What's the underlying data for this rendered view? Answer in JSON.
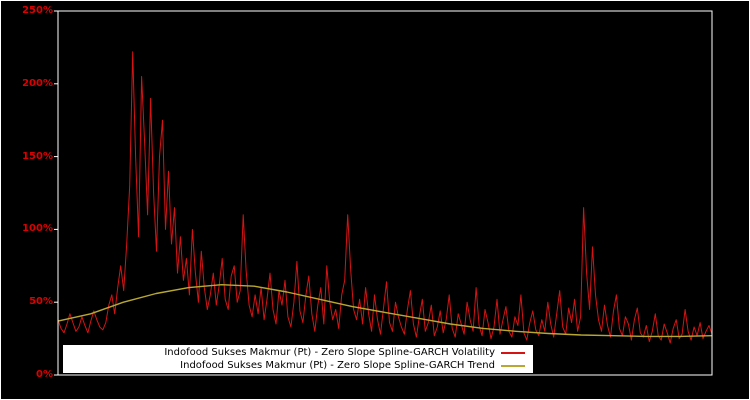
{
  "chart_data": {
    "type": "line",
    "title": "",
    "xlabel": "",
    "ylabel": "",
    "ylim": [
      0,
      250
    ],
    "y_ticks": [
      "0%",
      "50%",
      "100%",
      "150%",
      "200%",
      "250%"
    ],
    "y_tick_values": [
      0,
      50,
      100,
      150,
      200,
      250
    ],
    "tick_label_color": "#dd0000",
    "frame_color": "#ffffff",
    "background": "#000000",
    "legend_position": "bottom-center",
    "grid": false,
    "series": [
      {
        "name": "Indofood Sukses Makmur (Pt) - Zero Slope Spline-GARCH Volatility",
        "color": "#d41414",
        "unit": "%",
        "values": [
          38,
          32,
          29,
          35,
          42,
          36,
          30,
          33,
          40,
          34,
          29,
          37,
          44,
          38,
          33,
          31,
          36,
          48,
          55,
          42,
          60,
          75,
          58,
          90,
          130,
          222,
          150,
          95,
          205,
          160,
          110,
          190,
          125,
          85,
          150,
          175,
          100,
          140,
          90,
          115,
          70,
          95,
          65,
          80,
          55,
          100,
          70,
          50,
          85,
          60,
          45,
          55,
          70,
          48,
          62,
          80,
          52,
          45,
          68,
          75,
          50,
          58,
          110,
          72,
          48,
          40,
          55,
          42,
          60,
          38,
          52,
          70,
          45,
          35,
          58,
          48,
          65,
          40,
          33,
          50,
          78,
          44,
          36,
          55,
          68,
          42,
          30,
          48,
          60,
          35,
          75,
          50,
          38,
          45,
          32,
          55,
          65,
          110,
          72,
          45,
          38,
          52,
          35,
          60,
          42,
          30,
          55,
          38,
          28,
          46,
          64,
          36,
          30,
          50,
          40,
          33,
          28,
          45,
          58,
          35,
          26,
          40,
          52,
          30,
          36,
          48,
          27,
          33,
          44,
          29,
          38,
          55,
          32,
          26,
          42,
          35,
          28,
          50,
          38,
          30,
          60,
          34,
          27,
          45,
          36,
          25,
          33,
          52,
          28,
          38,
          47,
          30,
          26,
          40,
          34,
          55,
          29,
          24,
          36,
          44,
          31,
          27,
          38,
          30,
          50,
          35,
          26,
          42,
          58,
          33,
          28,
          46,
          36,
          52,
          30,
          40,
          115,
          70,
          45,
          88,
          55,
          38,
          30,
          48,
          34,
          26,
          44,
          55,
          32,
          27,
          40,
          35,
          24,
          38,
          46,
          29,
          26,
          34,
          23,
          30,
          42,
          27,
          24,
          35,
          29,
          22,
          32,
          38,
          25,
          28,
          45,
          30,
          24,
          33,
          27,
          36,
          25,
          30,
          34,
          28
        ]
      },
      {
        "name": "Indofood Sukses Makmur (Pt) - Zero Slope Spline-GARCH Trend",
        "color": "#b8a832",
        "unit": "%",
        "anchors": [
          [
            0,
            37
          ],
          [
            0.05,
            42
          ],
          [
            0.1,
            50
          ],
          [
            0.15,
            56
          ],
          [
            0.2,
            60
          ],
          [
            0.25,
            62
          ],
          [
            0.3,
            61
          ],
          [
            0.35,
            57
          ],
          [
            0.4,
            52
          ],
          [
            0.45,
            47
          ],
          [
            0.5,
            43
          ],
          [
            0.55,
            39
          ],
          [
            0.6,
            35
          ],
          [
            0.65,
            32
          ],
          [
            0.7,
            30
          ],
          [
            0.75,
            28.5
          ],
          [
            0.8,
            27.5
          ],
          [
            0.85,
            27
          ],
          [
            0.9,
            26.5
          ],
          [
            0.95,
            26.5
          ],
          [
            1,
            27
          ]
        ]
      }
    ]
  }
}
